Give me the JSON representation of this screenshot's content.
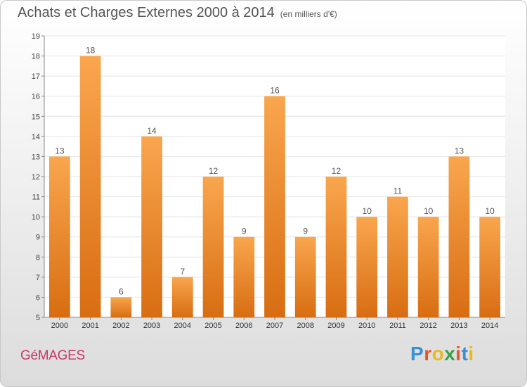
{
  "title": {
    "main": "Achats et Charges Externes 2000 à 2014",
    "unit": "(en milliers d'€)"
  },
  "commune": "GéMAGES",
  "logo": {
    "text": "Proxiti",
    "letter_colors": [
      "#3a8fd6",
      "#e8542a",
      "#e8b923",
      "#3aa14b",
      "#e8542a",
      "#3a8fd6",
      "#e8b923"
    ]
  },
  "chart_data": {
    "type": "bar",
    "categories": [
      "2000",
      "2001",
      "2002",
      "2003",
      "2004",
      "2005",
      "2006",
      "2007",
      "2008",
      "2009",
      "2010",
      "2011",
      "2012",
      "2013",
      "2014"
    ],
    "values": [
      13,
      18,
      6,
      14,
      7,
      12,
      9,
      16,
      9,
      12,
      10,
      11,
      10,
      13,
      10
    ],
    "ylim": [
      5,
      19
    ],
    "yticks": [
      5,
      6,
      7,
      8,
      9,
      10,
      11,
      12,
      13,
      14,
      15,
      16,
      17,
      18,
      19
    ],
    "grid": true,
    "bar_color_top": "#f9a64e",
    "bar_color_bottom": "#d86d12",
    "xlabel": "",
    "ylabel": ""
  }
}
